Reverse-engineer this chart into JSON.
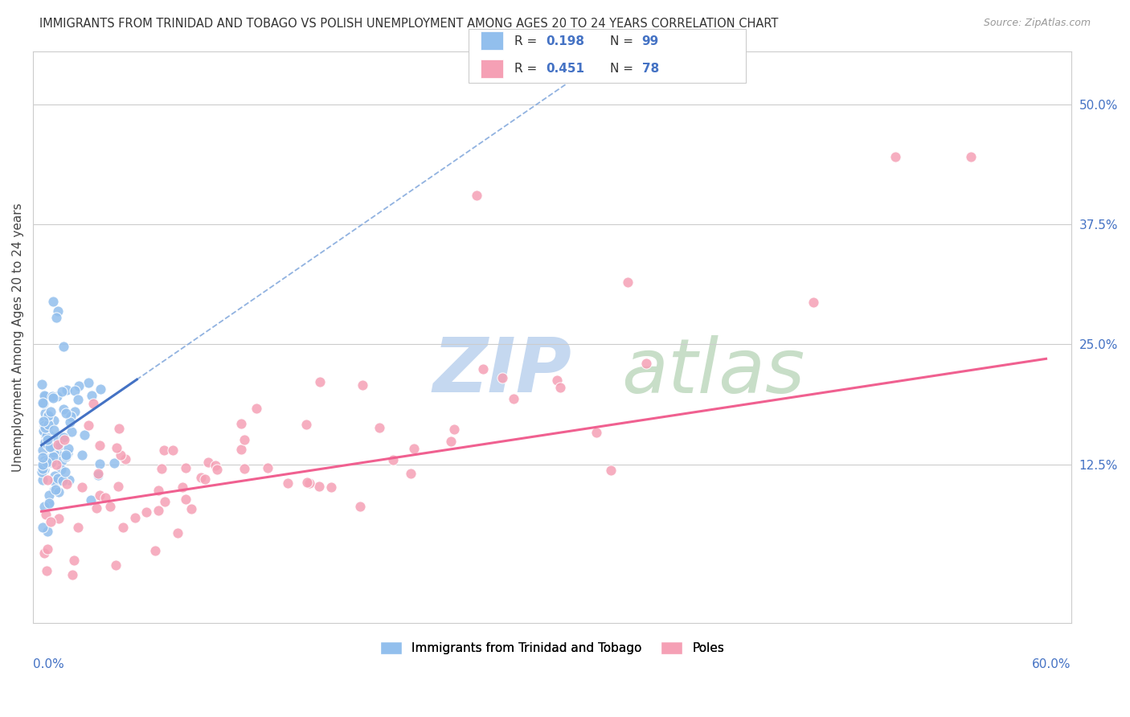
{
  "title": "IMMIGRANTS FROM TRINIDAD AND TOBAGO VS POLISH UNEMPLOYMENT AMONG AGES 20 TO 24 YEARS CORRELATION CHART",
  "source": "Source: ZipAtlas.com",
  "ylabel": "Unemployment Among Ages 20 to 24 years",
  "ylabel_right_ticks": [
    "50.0%",
    "37.5%",
    "25.0%",
    "12.5%"
  ],
  "ylabel_right_vals": [
    0.5,
    0.375,
    0.25,
    0.125
  ],
  "legend_label1": "Immigrants from Trinidad and Tobago",
  "legend_label2": "Poles",
  "blue_color": "#92BFED",
  "pink_color": "#F5A0B5",
  "blue_line_color": "#4472C4",
  "pink_line_color": "#F06090",
  "dashed_line_color": "#85AADD",
  "background_color": "#FFFFFF",
  "seed": 42,
  "blue_N": 99,
  "pink_N": 78,
  "blue_R": 0.198,
  "pink_R": 0.451,
  "xmax": 0.6,
  "ymin": -0.04,
  "ymax": 0.555
}
